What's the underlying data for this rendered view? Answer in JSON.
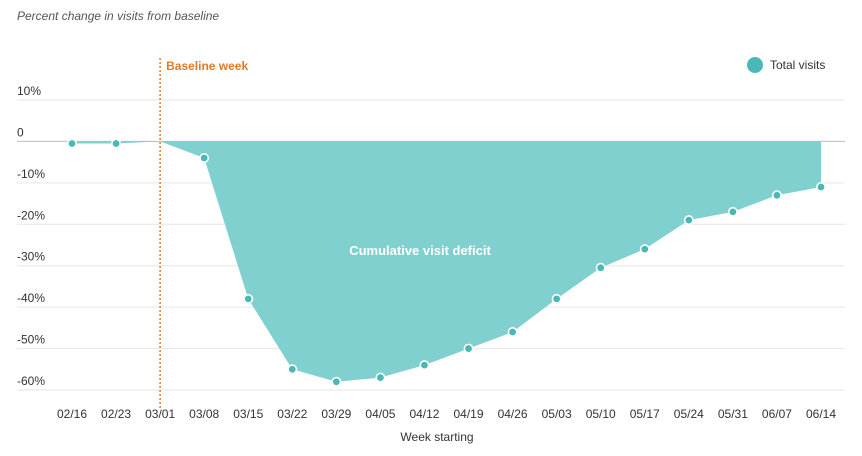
{
  "chart_data": {
    "type": "area",
    "subtitle": "Percent change in visits from baseline",
    "xlabel": "Week starting",
    "ylabel": "",
    "ylim": [
      -62,
      18
    ],
    "yticks": [
      {
        "value": 10,
        "label": "10%"
      },
      {
        "value": 0,
        "label": "0"
      },
      {
        "value": -10,
        "label": "-10%"
      },
      {
        "value": -20,
        "label": "-20%"
      },
      {
        "value": -30,
        "label": "-30%"
      },
      {
        "value": -40,
        "label": "-40%"
      },
      {
        "value": -50,
        "label": "-50%"
      },
      {
        "value": -60,
        "label": "-60%"
      }
    ],
    "categories": [
      "02/16",
      "02/23",
      "03/01",
      "03/08",
      "03/15",
      "03/22",
      "03/29",
      "04/05",
      "04/12",
      "04/19",
      "04/26",
      "05/03",
      "05/10",
      "05/17",
      "05/24",
      "05/31",
      "06/07",
      "06/14"
    ],
    "series": [
      {
        "name": "Total visits",
        "values": [
          -0.5,
          -0.5,
          0,
          -4,
          -38,
          -55,
          -58,
          -57,
          -54,
          -50,
          -46,
          -38,
          -30.5,
          -26,
          -19,
          -17,
          -13,
          -11
        ]
      }
    ],
    "baseline": {
      "category": "03/01",
      "label": "Baseline week"
    },
    "annotation": "Cumulative visit deficit",
    "legend": {
      "label": "Total visits",
      "position": "top-right"
    },
    "grid": true,
    "colors": {
      "fill": "#80d0d0",
      "marker": "#4bb8b8",
      "baseline": "#e07b28",
      "grid": "#e6e6e6",
      "zero": "#bbbbbb"
    }
  }
}
